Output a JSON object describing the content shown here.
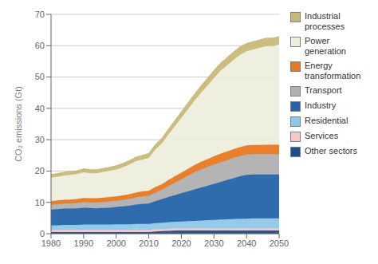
{
  "chart_data": {
    "type": "area",
    "stacked": true,
    "y_label": "CO₂ emissions (Gt)",
    "x": [
      1980,
      1982,
      1984,
      1986,
      1988,
      1990,
      1992,
      1994,
      1996,
      1998,
      2000,
      2002,
      2004,
      2006,
      2008,
      2010,
      2012,
      2014,
      2016,
      2018,
      2020,
      2022,
      2024,
      2026,
      2028,
      2030,
      2032,
      2034,
      2036,
      2038,
      2040,
      2042,
      2044,
      2046,
      2048,
      2050
    ],
    "series": [
      {
        "name": "Other sectors",
        "color": "#1f4e8c",
        "values": [
          0.5,
          0.5,
          0.5,
          0.5,
          0.5,
          0.5,
          0.5,
          0.5,
          0.5,
          0.5,
          0.5,
          0.5,
          0.5,
          0.5,
          0.5,
          0.5,
          0.7,
          0.8,
          0.9,
          1.0,
          1.0,
          1.0,
          1.0,
          1.0,
          1.0,
          1.0,
          1.0,
          1.0,
          1.0,
          1.0,
          1.0,
          1.0,
          1.0,
          1.0,
          1.0,
          1.0
        ]
      },
      {
        "name": "Services",
        "color": "#f7c6c6",
        "values": [
          0.7,
          0.7,
          0.7,
          0.7,
          0.7,
          0.7,
          0.7,
          0.7,
          0.7,
          0.7,
          0.7,
          0.7,
          0.7,
          0.7,
          0.7,
          0.7,
          0.7,
          0.7,
          0.7,
          0.7,
          0.7,
          0.7,
          0.7,
          0.7,
          0.7,
          0.7,
          0.7,
          0.7,
          0.7,
          0.7,
          0.7,
          0.7,
          0.7,
          0.7,
          0.7,
          0.7
        ]
      },
      {
        "name": "Residential",
        "color": "#8dc8e8",
        "values": [
          1.5,
          1.5,
          1.6,
          1.6,
          1.6,
          1.7,
          1.7,
          1.7,
          1.7,
          1.7,
          1.8,
          1.8,
          1.8,
          1.9,
          1.9,
          1.9,
          2.0,
          2.0,
          2.1,
          2.1,
          2.2,
          2.3,
          2.4,
          2.5,
          2.6,
          2.7,
          2.8,
          2.9,
          3.0,
          3.1,
          3.1,
          3.2,
          3.2,
          3.2,
          3.2,
          3.2
        ]
      },
      {
        "name": "Industry",
        "color": "#2464aa",
        "values": [
          5.0,
          5.1,
          5.2,
          5.2,
          5.3,
          5.4,
          5.3,
          5.2,
          5.3,
          5.4,
          5.5,
          5.7,
          5.9,
          6.2,
          6.4,
          6.5,
          7.0,
          7.5,
          8.0,
          8.5,
          9.0,
          9.5,
          10.0,
          10.5,
          11.0,
          11.5,
          12.0,
          12.5,
          13.0,
          13.5,
          14.0,
          14.0,
          14.0,
          14.0,
          14.0,
          14.0
        ]
      },
      {
        "name": "Transport",
        "color": "#b0b0b0",
        "values": [
          1.5,
          1.6,
          1.6,
          1.7,
          1.7,
          1.8,
          1.8,
          1.9,
          1.9,
          2.0,
          2.0,
          2.1,
          2.2,
          2.3,
          2.4,
          2.5,
          2.8,
          3.0,
          3.5,
          4.0,
          4.5,
          5.0,
          5.5,
          5.8,
          6.0,
          6.2,
          6.3,
          6.4,
          6.5,
          6.5,
          6.5,
          6.5,
          6.5,
          6.5,
          6.5,
          6.5
        ]
      },
      {
        "name": "Energy\ntransformation",
        "color": "#e87820",
        "values": [
          1.2,
          1.2,
          1.2,
          1.2,
          1.3,
          1.3,
          1.3,
          1.3,
          1.4,
          1.4,
          1.4,
          1.4,
          1.5,
          1.5,
          1.6,
          1.6,
          1.7,
          1.8,
          1.9,
          2.0,
          2.1,
          2.2,
          2.3,
          2.4,
          2.5,
          2.6,
          2.7,
          2.7,
          2.8,
          2.8,
          2.9,
          2.9,
          2.9,
          3.0,
          3.0,
          3.0
        ]
      },
      {
        "name": "Power\ngeneration",
        "color": "#eeeedd",
        "values": [
          7.5,
          7.6,
          7.8,
          7.9,
          8.0,
          8.2,
          8.0,
          8.0,
          8.2,
          8.4,
          8.6,
          9.0,
          9.5,
          10.0,
          10.2,
          10.5,
          12.0,
          13.0,
          14.5,
          16.0,
          17.5,
          19.0,
          20.5,
          22.0,
          23.5,
          25.0,
          26.5,
          27.5,
          28.5,
          29.5,
          30.0,
          30.5,
          31.0,
          31.5,
          31.5,
          32.0
        ]
      },
      {
        "name": "Industrial\nprocesses",
        "color": "#c8b878",
        "values": [
          1.0,
          1.0,
          1.0,
          1.0,
          1.0,
          1.1,
          1.1,
          1.1,
          1.1,
          1.1,
          1.2,
          1.2,
          1.2,
          1.3,
          1.3,
          1.4,
          1.5,
          1.6,
          1.7,
          1.8,
          1.9,
          2.0,
          2.1,
          2.2,
          2.3,
          2.4,
          2.4,
          2.5,
          2.5,
          2.5,
          2.5,
          2.5,
          2.5,
          2.5,
          2.5,
          2.5
        ]
      }
    ],
    "xlim": [
      1980,
      2050
    ],
    "xticks": [
      1980,
      1990,
      2000,
      2010,
      2020,
      2030,
      2040,
      2050
    ],
    "ylim": [
      0,
      70
    ],
    "yticks": [
      0,
      10,
      20,
      30,
      40,
      50,
      60,
      70
    ],
    "grid": true,
    "legend": "right"
  }
}
